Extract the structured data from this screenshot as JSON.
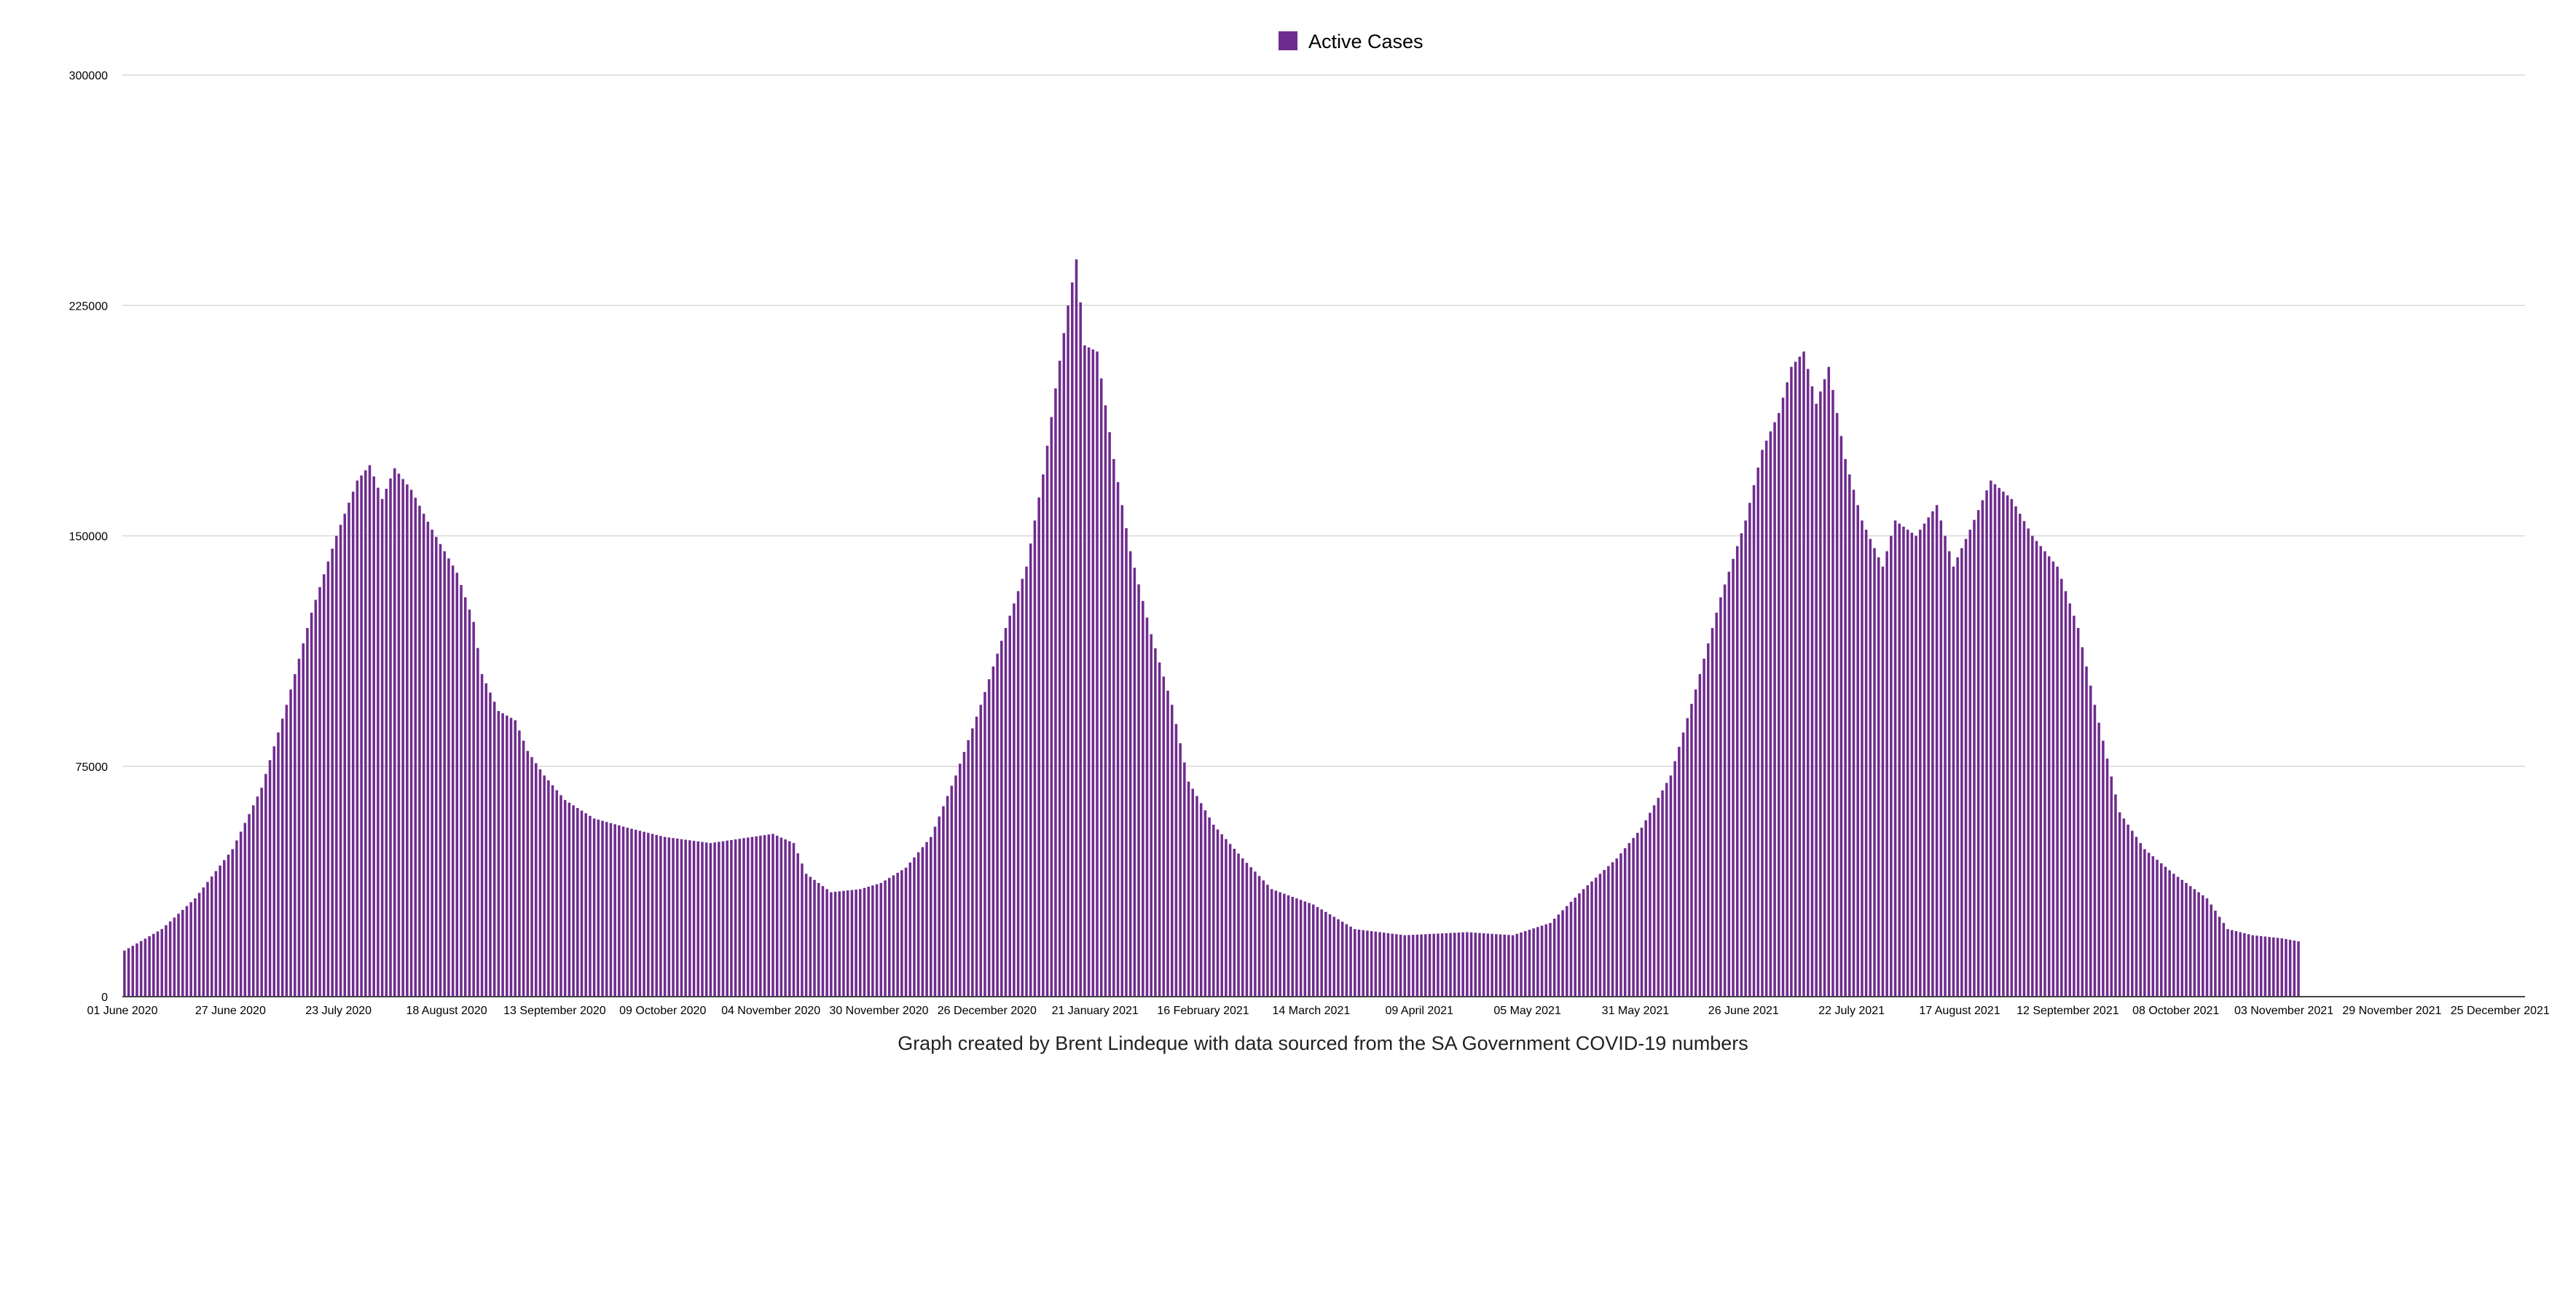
{
  "colors": {
    "series": "#6f2c8f",
    "grid": "#d9d9d9",
    "axis": "#444444"
  },
  "chart_data": {
    "type": "bar",
    "x_start_date": "2020-06-01",
    "x_end_date": "2021-12-31",
    "ylim": [
      0,
      300000
    ],
    "yticks": [
      0,
      75000,
      150000,
      225000,
      300000
    ],
    "xtick_labels": [
      "01 June 2020",
      "27 June 2020",
      "23 July 2020",
      "18 August 2020",
      "13 September 2020",
      "09 October 2020",
      "04 November 2020",
      "30 November 2020",
      "26 December 2020",
      "21 January 2021",
      "16 February 2021",
      "14 March 2021",
      "09 April 2021",
      "05 May 2021",
      "31 May 2021",
      "26 June 2021",
      "22 July 2021",
      "17 August 2021",
      "12 September 2021",
      "08 October 2021",
      "03 November 2021",
      "29 November 2021",
      "25 December 2021"
    ],
    "grid": true,
    "legend_position": "top-center",
    "caption": "Graph created by Brent Lindeque with data sourced from the SA Government COVID-19 numbers",
    "series": [
      {
        "name": "Active Cases",
        "keypoints": [
          [
            "2020-06-01",
            15000
          ],
          [
            "2020-06-10",
            22000
          ],
          [
            "2020-06-18",
            32000
          ],
          [
            "2020-06-27",
            48000
          ],
          [
            "2020-07-04",
            68000
          ],
          [
            "2020-07-10",
            95000
          ],
          [
            "2020-07-16",
            125000
          ],
          [
            "2020-07-22",
            150000
          ],
          [
            "2020-07-27",
            168000
          ],
          [
            "2020-07-30",
            173000
          ],
          [
            "2020-08-02",
            162000
          ],
          [
            "2020-08-05",
            172000
          ],
          [
            "2020-08-09",
            165000
          ],
          [
            "2020-08-14",
            152000
          ],
          [
            "2020-08-20",
            138000
          ],
          [
            "2020-08-24",
            122000
          ],
          [
            "2020-08-26",
            105000
          ],
          [
            "2020-08-30",
            93000
          ],
          [
            "2020-09-03",
            90000
          ],
          [
            "2020-09-06",
            80000
          ],
          [
            "2020-09-10",
            72000
          ],
          [
            "2020-09-15",
            64000
          ],
          [
            "2020-09-22",
            58000
          ],
          [
            "2020-09-30",
            55000
          ],
          [
            "2020-10-09",
            52000
          ],
          [
            "2020-10-20",
            50000
          ],
          [
            "2020-10-30",
            52000
          ],
          [
            "2020-11-04",
            53000
          ],
          [
            "2020-11-09",
            50000
          ],
          [
            "2020-11-12",
            40000
          ],
          [
            "2020-11-18",
            34000
          ],
          [
            "2020-11-25",
            35000
          ],
          [
            "2020-11-30",
            37000
          ],
          [
            "2020-12-06",
            42000
          ],
          [
            "2020-12-12",
            52000
          ],
          [
            "2020-12-18",
            72000
          ],
          [
            "2020-12-24",
            95000
          ],
          [
            "2020-12-30",
            120000
          ],
          [
            "2021-01-04",
            140000
          ],
          [
            "2021-01-08",
            170000
          ],
          [
            "2021-01-11",
            198000
          ],
          [
            "2021-01-14",
            225000
          ],
          [
            "2021-01-16",
            240000
          ],
          [
            "2021-01-18",
            212000
          ],
          [
            "2021-01-21",
            210000
          ],
          [
            "2021-01-25",
            175000
          ],
          [
            "2021-01-29",
            145000
          ],
          [
            "2021-02-03",
            118000
          ],
          [
            "2021-02-08",
            95000
          ],
          [
            "2021-02-12",
            70000
          ],
          [
            "2021-02-18",
            56000
          ],
          [
            "2021-02-25",
            45000
          ],
          [
            "2021-03-04",
            35000
          ],
          [
            "2021-03-14",
            30000
          ],
          [
            "2021-03-24",
            22000
          ],
          [
            "2021-04-05",
            20000
          ],
          [
            "2021-04-20",
            21000
          ],
          [
            "2021-05-01",
            20000
          ],
          [
            "2021-05-10",
            24000
          ],
          [
            "2021-05-18",
            35000
          ],
          [
            "2021-05-26",
            45000
          ],
          [
            "2021-06-01",
            55000
          ],
          [
            "2021-06-08",
            72000
          ],
          [
            "2021-06-14",
            100000
          ],
          [
            "2021-06-20",
            130000
          ],
          [
            "2021-06-26",
            155000
          ],
          [
            "2021-06-30",
            178000
          ],
          [
            "2021-07-04",
            190000
          ],
          [
            "2021-07-07",
            205000
          ],
          [
            "2021-07-10",
            210000
          ],
          [
            "2021-07-13",
            193000
          ],
          [
            "2021-07-16",
            205000
          ],
          [
            "2021-07-20",
            175000
          ],
          [
            "2021-07-24",
            155000
          ],
          [
            "2021-07-29",
            140000
          ],
          [
            "2021-08-01",
            155000
          ],
          [
            "2021-08-06",
            150000
          ],
          [
            "2021-08-11",
            160000
          ],
          [
            "2021-08-15",
            140000
          ],
          [
            "2021-08-19",
            152000
          ],
          [
            "2021-08-24",
            168000
          ],
          [
            "2021-08-29",
            162000
          ],
          [
            "2021-09-03",
            150000
          ],
          [
            "2021-09-09",
            140000
          ],
          [
            "2021-09-14",
            120000
          ],
          [
            "2021-09-18",
            95000
          ],
          [
            "2021-09-24",
            60000
          ],
          [
            "2021-09-30",
            48000
          ],
          [
            "2021-10-07",
            40000
          ],
          [
            "2021-10-15",
            32000
          ],
          [
            "2021-10-20",
            22000
          ],
          [
            "2021-10-26",
            20000
          ],
          [
            "2021-11-02",
            19000
          ],
          [
            "2021-11-06",
            18000
          ]
        ]
      }
    ]
  }
}
